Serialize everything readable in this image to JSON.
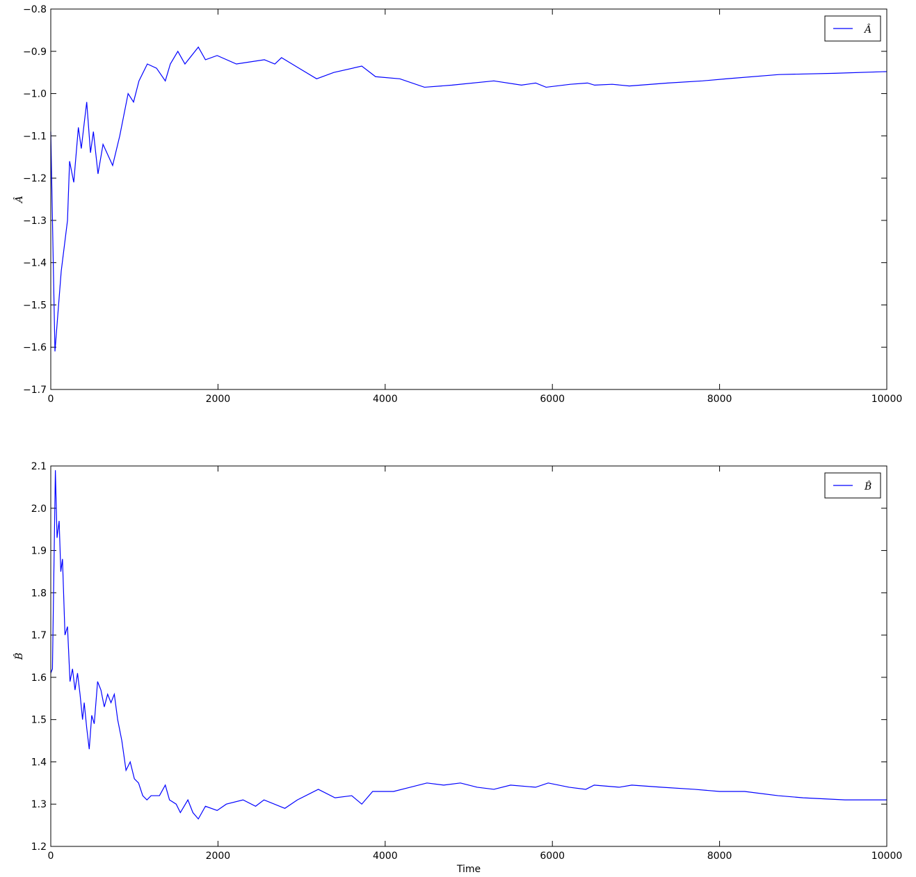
{
  "chart_data": [
    {
      "type": "line",
      "ylabel": "Â",
      "legend": "upper right",
      "grid": false,
      "x": [
        0,
        50,
        125,
        200,
        225,
        275,
        330,
        365,
        400,
        430,
        475,
        510,
        565,
        625,
        740,
        825,
        925,
        990,
        1055,
        1155,
        1265,
        1370,
        1430,
        1520,
        1605,
        1765,
        1850,
        1990,
        2220,
        2555,
        2680,
        2760,
        2970,
        3180,
        3385,
        3720,
        3885,
        4175,
        4470,
        4800,
        5300,
        5630,
        5800,
        5925,
        6215,
        6420,
        6505,
        6715,
        6920,
        7380,
        7795,
        8085,
        8710,
        9375,
        10000
      ],
      "series": [
        {
          "name": "Â",
          "color": "#0000ff",
          "values": [
            -1.09,
            -1.61,
            -1.42,
            -1.3,
            -1.16,
            -1.21,
            -1.08,
            -1.13,
            -1.07,
            -1.02,
            -1.14,
            -1.09,
            -1.19,
            -1.12,
            -1.17,
            -1.1,
            -1.0,
            -1.02,
            -0.97,
            -0.93,
            -0.94,
            -0.97,
            -0.93,
            -0.9,
            -0.93,
            -0.89,
            -0.92,
            -0.91,
            -0.93,
            -0.92,
            -0.93,
            -0.915,
            -0.94,
            -0.965,
            -0.95,
            -0.935,
            -0.96,
            -0.965,
            -0.985,
            -0.98,
            -0.97,
            -0.98,
            -0.975,
            -0.985,
            -0.978,
            -0.975,
            -0.98,
            -0.978,
            -0.982,
            -0.975,
            -0.97,
            -0.965,
            -0.955,
            -0.952,
            -0.948
          ]
        }
      ],
      "xlim": [
        0,
        10000
      ],
      "xticks": [
        0,
        2000,
        4000,
        6000,
        8000,
        10000
      ],
      "ylim": [
        -1.7,
        -0.8
      ],
      "yticks": [
        {
          "value": -1.7,
          "label": "−1.7"
        },
        {
          "value": -1.6,
          "label": "−1.6"
        },
        {
          "value": -1.5,
          "label": "−1.5"
        },
        {
          "value": -1.4,
          "label": "−1.4"
        },
        {
          "value": -1.3,
          "label": "−1.3"
        },
        {
          "value": -1.2,
          "label": "−1.2"
        },
        {
          "value": -1.1,
          "label": "−1.1"
        },
        {
          "value": -1.0,
          "label": "−1.0"
        },
        {
          "value": -0.9,
          "label": "−0.9"
        },
        {
          "value": -0.8,
          "label": "−0.8"
        }
      ]
    },
    {
      "type": "line",
      "ylabel": "B̂",
      "xlabel": "Time",
      "legend": "upper right",
      "grid": false,
      "x": [
        0,
        20,
        55,
        75,
        100,
        120,
        140,
        170,
        200,
        230,
        260,
        290,
        320,
        350,
        380,
        400,
        430,
        460,
        490,
        520,
        560,
        600,
        640,
        680,
        720,
        760,
        800,
        850,
        900,
        950,
        1000,
        1050,
        1100,
        1150,
        1200,
        1300,
        1370,
        1420,
        1500,
        1550,
        1640,
        1700,
        1765,
        1850,
        1990,
        2100,
        2300,
        2450,
        2550,
        2800,
        2950,
        3200,
        3400,
        3600,
        3720,
        3850,
        4100,
        4300,
        4500,
        4700,
        4900,
        5100,
        5300,
        5500,
        5800,
        5950,
        6200,
        6400,
        6500,
        6800,
        6950,
        7300,
        7700,
        8000,
        8300,
        8700,
        9000,
        9500,
        10000
      ],
      "series": [
        {
          "name": "B̂",
          "color": "#0000ff",
          "values": [
            1.61,
            1.62,
            2.09,
            1.93,
            1.97,
            1.85,
            1.88,
            1.7,
            1.72,
            1.59,
            1.62,
            1.57,
            1.61,
            1.56,
            1.5,
            1.54,
            1.48,
            1.43,
            1.51,
            1.49,
            1.59,
            1.57,
            1.53,
            1.56,
            1.54,
            1.56,
            1.5,
            1.45,
            1.38,
            1.4,
            1.36,
            1.35,
            1.32,
            1.31,
            1.32,
            1.32,
            1.345,
            1.31,
            1.3,
            1.28,
            1.31,
            1.28,
            1.265,
            1.295,
            1.285,
            1.3,
            1.31,
            1.295,
            1.31,
            1.29,
            1.31,
            1.335,
            1.315,
            1.32,
            1.3,
            1.33,
            1.33,
            1.34,
            1.35,
            1.345,
            1.35,
            1.34,
            1.335,
            1.345,
            1.34,
            1.35,
            1.34,
            1.335,
            1.345,
            1.34,
            1.345,
            1.34,
            1.335,
            1.33,
            1.33,
            1.32,
            1.315,
            1.31,
            1.31
          ]
        }
      ],
      "xlim": [
        0,
        10000
      ],
      "xticks": [
        0,
        2000,
        4000,
        6000,
        8000,
        10000
      ],
      "ylim": [
        1.2,
        2.1
      ],
      "yticks": [
        1.2,
        1.3,
        1.4,
        1.5,
        1.6,
        1.7,
        1.8,
        1.9,
        {
          "value": 2.0,
          "label": "2.0"
        },
        2.1
      ]
    }
  ]
}
